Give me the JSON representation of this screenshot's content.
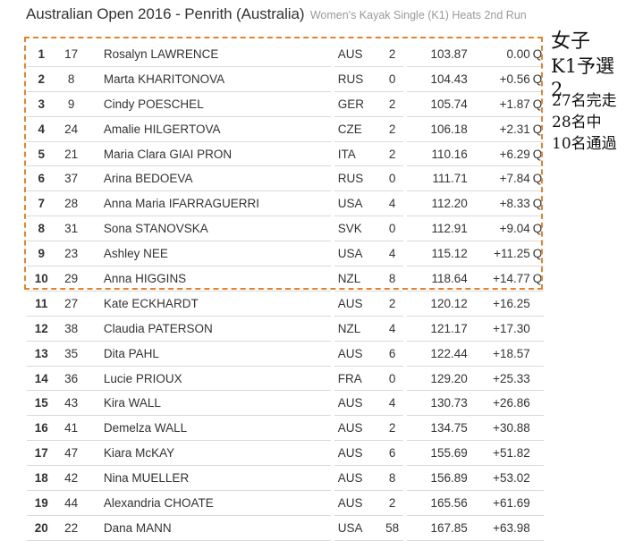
{
  "header": {
    "title": "Australian Open 2016 - Penrith (Australia)",
    "subtitle": "Women's Kayak Single (K1) Heats 2nd Run"
  },
  "annotation": {
    "line1": "女子",
    "line2": "K1予選2",
    "line3": "27名完走",
    "line4": "28名中",
    "line5": "10名通過",
    "box_color": "#e8822a"
  },
  "results": [
    {
      "rank": "1",
      "bib": "17",
      "name": "Rosalyn LAWRENCE",
      "nat": "AUS",
      "pen": "2",
      "time": "103.87",
      "behind": "0.00",
      "q": "Q"
    },
    {
      "rank": "2",
      "bib": "8",
      "name": "Marta KHARITONOVA",
      "nat": "RUS",
      "pen": "0",
      "time": "104.43",
      "behind": "+0.56",
      "q": "Q"
    },
    {
      "rank": "3",
      "bib": "9",
      "name": "Cindy POESCHEL",
      "nat": "GER",
      "pen": "2",
      "time": "105.74",
      "behind": "+1.87",
      "q": "Q"
    },
    {
      "rank": "4",
      "bib": "24",
      "name": "Amalie HILGERTOVA",
      "nat": "CZE",
      "pen": "2",
      "time": "106.18",
      "behind": "+2.31",
      "q": "Q"
    },
    {
      "rank": "5",
      "bib": "21",
      "name": "Maria Clara GIAI PRON",
      "nat": "ITA",
      "pen": "2",
      "time": "110.16",
      "behind": "+6.29",
      "q": "Q"
    },
    {
      "rank": "6",
      "bib": "37",
      "name": "Arina BEDOEVA",
      "nat": "RUS",
      "pen": "0",
      "time": "111.71",
      "behind": "+7.84",
      "q": "Q"
    },
    {
      "rank": "7",
      "bib": "28",
      "name": "Anna Maria IFARRAGUERRI",
      "nat": "USA",
      "pen": "4",
      "time": "112.20",
      "behind": "+8.33",
      "q": "Q"
    },
    {
      "rank": "8",
      "bib": "31",
      "name": "Sona STANOVSKA",
      "nat": "SVK",
      "pen": "0",
      "time": "112.91",
      "behind": "+9.04",
      "q": "Q"
    },
    {
      "rank": "9",
      "bib": "23",
      "name": "Ashley NEE",
      "nat": "USA",
      "pen": "4",
      "time": "115.12",
      "behind": "+11.25",
      "q": "Q"
    },
    {
      "rank": "10",
      "bib": "29",
      "name": "Anna HIGGINS",
      "nat": "NZL",
      "pen": "8",
      "time": "118.64",
      "behind": "+14.77",
      "q": "Q"
    },
    {
      "rank": "11",
      "bib": "27",
      "name": "Kate ECKHARDT",
      "nat": "AUS",
      "pen": "2",
      "time": "120.12",
      "behind": "+16.25",
      "q": ""
    },
    {
      "rank": "12",
      "bib": "38",
      "name": "Claudia PATERSON",
      "nat": "NZL",
      "pen": "4",
      "time": "121.17",
      "behind": "+17.30",
      "q": ""
    },
    {
      "rank": "13",
      "bib": "35",
      "name": "Dita PAHL",
      "nat": "AUS",
      "pen": "6",
      "time": "122.44",
      "behind": "+18.57",
      "q": ""
    },
    {
      "rank": "14",
      "bib": "36",
      "name": "Lucie PRIOUX",
      "nat": "FRA",
      "pen": "0",
      "time": "129.20",
      "behind": "+25.33",
      "q": ""
    },
    {
      "rank": "15",
      "bib": "43",
      "name": "Kira WALL",
      "nat": "AUS",
      "pen": "4",
      "time": "130.73",
      "behind": "+26.86",
      "q": ""
    },
    {
      "rank": "16",
      "bib": "41",
      "name": "Demelza WALL",
      "nat": "AUS",
      "pen": "2",
      "time": "134.75",
      "behind": "+30.88",
      "q": ""
    },
    {
      "rank": "17",
      "bib": "47",
      "name": "Kiara McKAY",
      "nat": "AUS",
      "pen": "6",
      "time": "155.69",
      "behind": "+51.82",
      "q": ""
    },
    {
      "rank": "18",
      "bib": "42",
      "name": "Nina MUELLER",
      "nat": "AUS",
      "pen": "8",
      "time": "156.89",
      "behind": "+53.02",
      "q": ""
    },
    {
      "rank": "19",
      "bib": "44",
      "name": "Alexandria CHOATE",
      "nat": "AUS",
      "pen": "2",
      "time": "165.56",
      "behind": "+61.69",
      "q": ""
    },
    {
      "rank": "20",
      "bib": "22",
      "name": "Dana MANN",
      "nat": "USA",
      "pen": "58",
      "time": "167.85",
      "behind": "+63.98",
      "q": ""
    }
  ]
}
